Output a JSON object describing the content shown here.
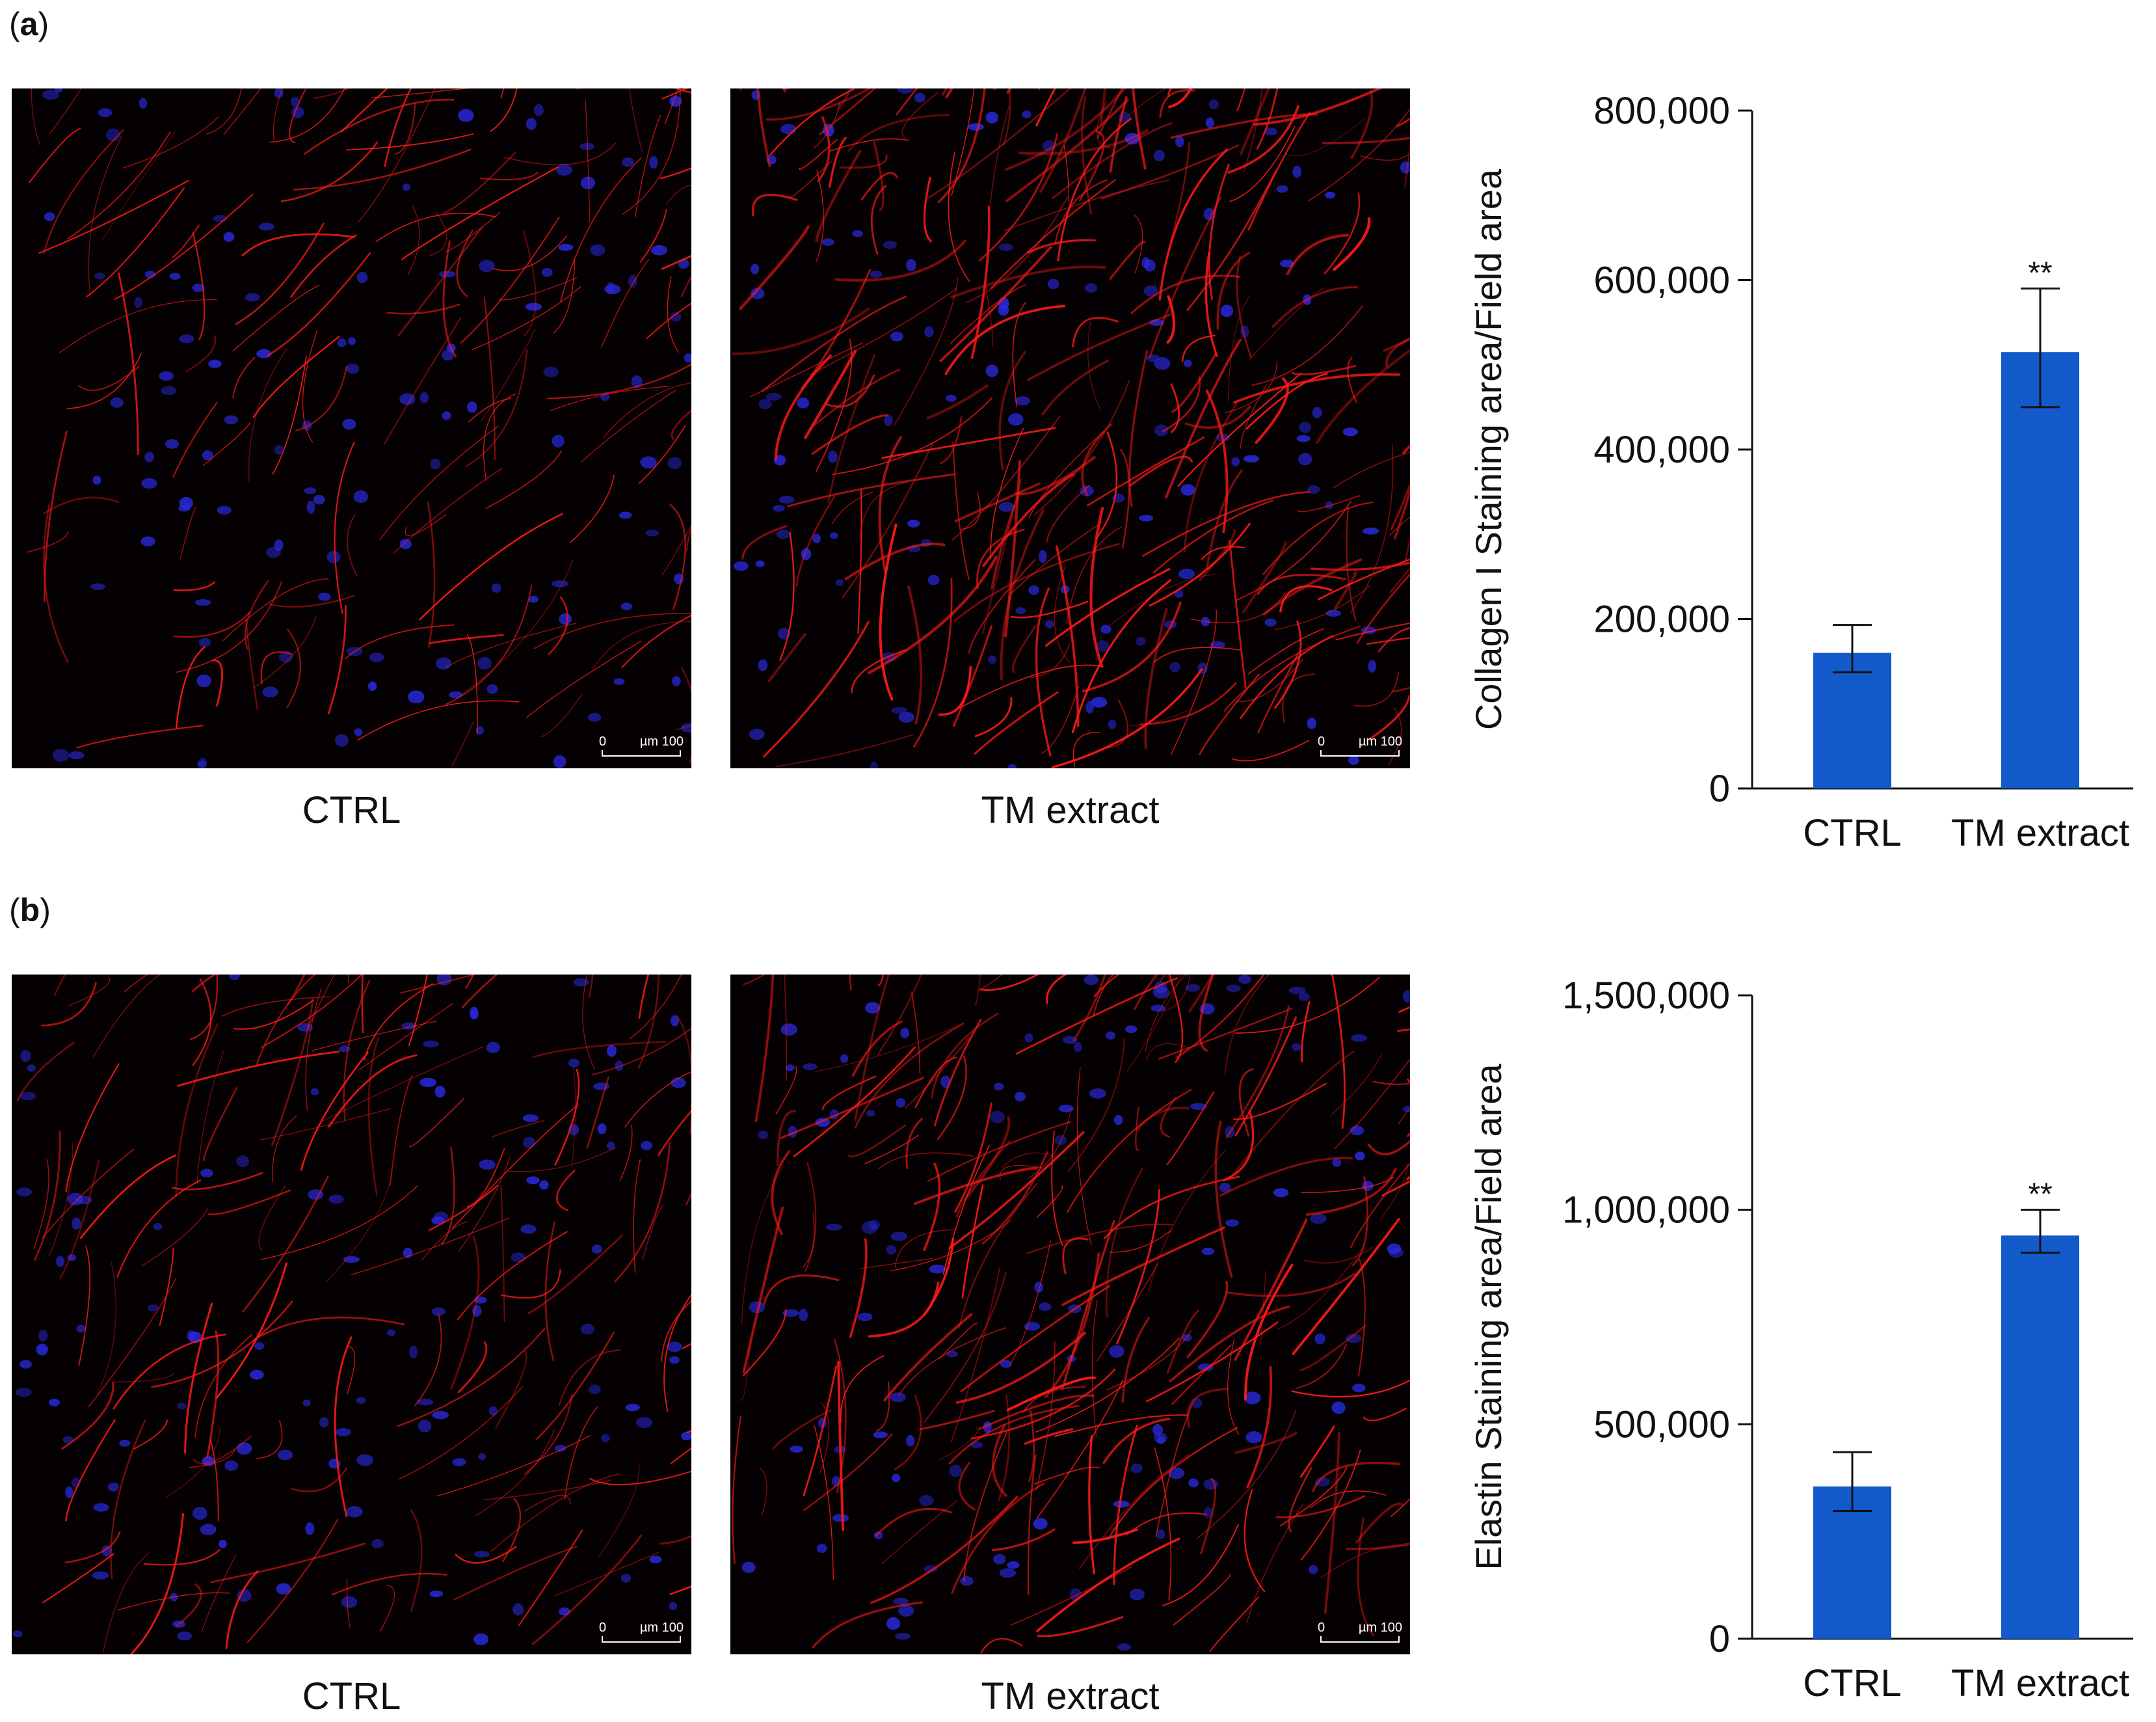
{
  "figure": {
    "panels": [
      {
        "id": "a",
        "label_paren_open": "(",
        "label_letter": "a",
        "label_paren_close": ")",
        "images": [
          {
            "caption": "CTRL",
            "scale_zero": "0",
            "scale_label": "µm 100"
          },
          {
            "caption": "TM extract",
            "scale_zero": "0",
            "scale_label": "µm 100"
          }
        ]
      },
      {
        "id": "b",
        "label_paren_open": "(",
        "label_letter": "b",
        "label_paren_close": ")",
        "images": [
          {
            "caption": "CTRL",
            "scale_zero": "0",
            "scale_label": "µm 100"
          },
          {
            "caption": "TM extract",
            "scale_zero": "0",
            "scale_label": "µm 100"
          }
        ]
      }
    ],
    "colors": {
      "bar": "#1259c9",
      "stain": "#ff1a1a",
      "nuclei": "#2a2ae0",
      "background": "#050002"
    }
  },
  "chart_data": [
    {
      "type": "bar",
      "categories": [
        "CTRL",
        "TM extract"
      ],
      "values": [
        160000,
        515000
      ],
      "error_low": [
        137000,
        450000
      ],
      "error_high": [
        193000,
        590000
      ],
      "significance": [
        "",
        "**"
      ],
      "ylabel": "Collagen I Staining  area/Field area",
      "xlabel": "",
      "ylim": [
        0,
        800000
      ],
      "yticks": [
        0,
        200000,
        400000,
        600000,
        800000
      ],
      "ytick_labels": [
        "0",
        "200,000",
        "400,000",
        "600,000",
        "800,000"
      ],
      "grid": false
    },
    {
      "type": "bar",
      "categories": [
        "CTRL",
        "TM extract"
      ],
      "values": [
        355000,
        940000
      ],
      "error_low": [
        298000,
        900000
      ],
      "error_high": [
        435000,
        1000000
      ],
      "significance": [
        "",
        "**"
      ],
      "ylabel": "Elastin Staining  area/Field area",
      "xlabel": "",
      "ylim": [
        0,
        1500000
      ],
      "yticks": [
        0,
        500000,
        1000000,
        1500000
      ],
      "ytick_labels": [
        "0",
        "500,000",
        "1,000,000",
        "1,500,000"
      ],
      "grid": false
    }
  ]
}
